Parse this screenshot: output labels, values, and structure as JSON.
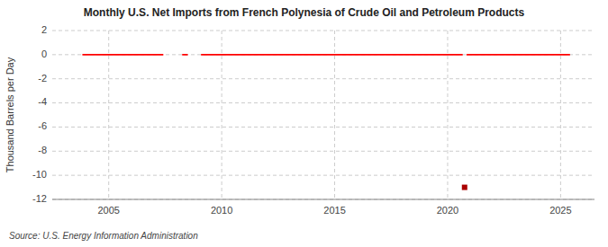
{
  "chart_data": {
    "type": "line",
    "title": "Monthly U.S. Net Imports from French Polynesia of Crude Oil and Petroleum Products",
    "ylabel": "Thousand Barrels per Day",
    "source": "Source: U.S. Energy Information Administration",
    "xlim": [
      2002.5,
      2026.5
    ],
    "ylim": [
      -12,
      2
    ],
    "xticks": [
      2005,
      2010,
      2015,
      2020,
      2025
    ],
    "yticks": [
      2,
      0,
      -2,
      -4,
      -6,
      -8,
      -10,
      -12
    ],
    "grid": true,
    "series": [
      {
        "type": "line",
        "color": "#FF0000",
        "x": [
          2003,
          2003.0833333333333,
          2003.1666666666667,
          2003.25,
          2003.3333333333333,
          2003.4166666666667,
          2003.5,
          2003.5833333333333,
          2003.6666666666667,
          2003.75,
          2003.8333333333333,
          2003.9166666666667,
          2004,
          2004.0833333333333,
          2004.1666666666667,
          2004.25,
          2004.3333333333333,
          2004.4166666666667,
          2004.5,
          2004.5833333333333,
          2004.6666666666667,
          2004.75,
          2004.8333333333333,
          2004.9166666666667,
          2005,
          2005.0833333333333,
          2005.1666666666667,
          2005.25,
          2005.3333333333333,
          2005.4166666666667,
          2005.5,
          2005.5833333333333,
          2005.6666666666667,
          2005.75,
          2005.8333333333333,
          2005.9166666666667,
          2006,
          2006.0833333333333,
          2006.1666666666667,
          2006.25,
          2006.3333333333333,
          2006.4166666666667,
          2006.5,
          2006.5833333333333,
          2006.6666666666667,
          2006.75,
          2006.8333333333333,
          2006.9166666666667,
          2007,
          2007.0833333333333,
          2007.1666666666667,
          2007.25,
          2007.3333333333333,
          2007.4166666666667,
          2007.5,
          2007.5833333333333,
          2007.6666666666667,
          2007.75,
          2007.8333333333333,
          2007.9166666666667,
          2008,
          2008.0833333333333,
          2008.1666666666667,
          2008.25,
          2008.3333333333333,
          2008.4166666666667,
          2008.5,
          2008.5833333333333,
          2008.6666666666667,
          2008.75,
          2008.8333333333333,
          2008.9166666666667,
          2009,
          2009.0833333333333,
          2009.1666666666667,
          2009.25,
          2009.3333333333333,
          2009.4166666666667,
          2009.5,
          2009.5833333333333,
          2009.6666666666667,
          2009.75,
          2009.8333333333333,
          2009.9166666666667,
          2010,
          2010.0833333333333,
          2010.1666666666667,
          2010.25,
          2010.3333333333333,
          2010.4166666666667,
          2010.5,
          2010.5833333333333,
          2010.6666666666667,
          2010.75,
          2010.8333333333333,
          2010.9166666666667,
          2011,
          2011.0833333333333,
          2011.1666666666667,
          2011.25,
          2011.3333333333333,
          2011.4166666666667,
          2011.5,
          2011.5833333333333,
          2011.6666666666667,
          2011.75,
          2011.8333333333333,
          2011.9166666666667,
          2012,
          2012.0833333333333,
          2012.1666666666667,
          2012.25,
          2012.3333333333333,
          2012.4166666666667,
          2012.5,
          2012.5833333333333,
          2012.6666666666667,
          2012.75,
          2012.8333333333333,
          2012.9166666666667,
          2013,
          2013.0833333333333,
          2013.1666666666667,
          2013.25,
          2013.3333333333333,
          2013.4166666666667,
          2013.5,
          2013.5833333333333,
          2013.6666666666667,
          2013.75,
          2013.8333333333333,
          2013.9166666666667,
          2014,
          2014.0833333333333,
          2014.1666666666667,
          2014.25,
          2014.3333333333333,
          2014.4166666666667,
          2014.5,
          2014.5833333333333,
          2014.6666666666667,
          2014.75,
          2014.8333333333333,
          2014.9166666666667,
          2015,
          2015.0833333333333,
          2015.1666666666667,
          2015.25,
          2015.3333333333333,
          2015.4166666666667,
          2015.5,
          2015.5833333333333,
          2015.6666666666667,
          2015.75,
          2015.8333333333333,
          2015.9166666666667,
          2016,
          2016.0833333333333,
          2016.1666666666667,
          2016.25,
          2016.3333333333333,
          2016.4166666666667,
          2016.5,
          2016.5833333333333,
          2016.6666666666667,
          2016.75,
          2016.8333333333333,
          2016.9166666666667,
          2017,
          2017.0833333333333,
          2017.1666666666667,
          2017.25,
          2017.3333333333333,
          2017.4166666666667,
          2017.5,
          2017.5833333333333,
          2017.6666666666667,
          2017.75,
          2017.8333333333333,
          2017.9166666666667,
          2018,
          2018.0833333333333,
          2018.1666666666667,
          2018.25,
          2018.3333333333333,
          2018.4166666666667,
          2018.5,
          2018.5833333333333,
          2018.6666666666667,
          2018.75,
          2018.8333333333333,
          2018.9166666666667,
          2019,
          2019.0833333333333,
          2019.1666666666667,
          2019.25,
          2019.3333333333333,
          2019.4166666666667,
          2019.5,
          2019.5833333333333,
          2019.6666666666667,
          2019.75,
          2019.8333333333333,
          2019.9166666666667,
          2020,
          2020.0833333333333,
          2020.1666666666667,
          2020.25,
          2020.3333333333333,
          2020.4166666666667,
          2020.5,
          2020.5833333333333,
          2020.6666666666667,
          2020.75,
          2020.8333333333333,
          2020.9166666666667,
          2021,
          2021.0833333333333,
          2021.1666666666667,
          2021.25,
          2021.3333333333333,
          2021.4166666666667,
          2021.5,
          2021.5833333333333,
          2021.6666666666667,
          2021.75,
          2021.8333333333333,
          2021.9166666666667,
          2022,
          2022.0833333333333,
          2022.1666666666667,
          2022.25,
          2022.3333333333333,
          2022.4166666666667,
          2022.5,
          2022.5833333333333,
          2022.6666666666667,
          2022.75,
          2022.8333333333333,
          2022.9166666666667,
          2023,
          2023.0833333333333,
          2023.1666666666667,
          2023.25,
          2023.3333333333333,
          2023.4166666666667,
          2023.5,
          2023.5833333333333,
          2023.6666666666667,
          2023.75,
          2023.8333333333333,
          2023.9166666666667,
          2024,
          2024.0833333333333,
          2024.1666666666667,
          2024.25,
          2024.3333333333333,
          2024.4166666666667,
          2024.5,
          2024.5833333333333,
          2024.6666666666667,
          2024.75,
          2024.8333333333333,
          2024.9166666666667,
          2025,
          2025.0833333333333,
          2025.1666666666667,
          2025.25,
          2025.3333333333333,
          2025.4166666666667
        ],
        "values": [
          null,
          null,
          null,
          null,
          null,
          null,
          null,
          null,
          null,
          null,
          0,
          0,
          0,
          0,
          0,
          0,
          0,
          0,
          0,
          0,
          0,
          0,
          0,
          0,
          0,
          0,
          0,
          0,
          0,
          0,
          0,
          0,
          0,
          0,
          0,
          0,
          0,
          0,
          0,
          0,
          0,
          0,
          0,
          0,
          0,
          0,
          0,
          0,
          0,
          0,
          0,
          0,
          0,
          0,
          null,
          null,
          null,
          null,
          null,
          null,
          null,
          null,
          null,
          0,
          0,
          0,
          0,
          null,
          null,
          null,
          null,
          null,
          null,
          0,
          0,
          0,
          0,
          0,
          0,
          0,
          0,
          0,
          0,
          0,
          0,
          0,
          0,
          0,
          0,
          0,
          0,
          0,
          0,
          0,
          0,
          0,
          0,
          0,
          0,
          0,
          0,
          0,
          0,
          0,
          0,
          0,
          0,
          0,
          0,
          0,
          0,
          0,
          0,
          0,
          0,
          0,
          0,
          0,
          0,
          0,
          0,
          0,
          0,
          0,
          0,
          0,
          0,
          0,
          0,
          0,
          0,
          0,
          0,
          0,
          0,
          0,
          0,
          0,
          0,
          0,
          0,
          0,
          0,
          0,
          0,
          0,
          0,
          0,
          0,
          0,
          0,
          0,
          0,
          0,
          0,
          0,
          0,
          0,
          0,
          0,
          0,
          0,
          0,
          0,
          0,
          0,
          0,
          0,
          0,
          0,
          0,
          0,
          0,
          0,
          0,
          0,
          0,
          0,
          0,
          0,
          0,
          0,
          0,
          0,
          0,
          0,
          0,
          0,
          0,
          0,
          0,
          0,
          0,
          0,
          0,
          0,
          0,
          0,
          0,
          0,
          0,
          0,
          0,
          0,
          0,
          0,
          0,
          0,
          0,
          0,
          0,
          0,
          0,
          null,
          0,
          0,
          0,
          0,
          0,
          0,
          0,
          0,
          0,
          0,
          0,
          0,
          0,
          0,
          0,
          0,
          0,
          0,
          0,
          0,
          0,
          0,
          0,
          0,
          0,
          0,
          0,
          0,
          0,
          0,
          0,
          0,
          0,
          0,
          0,
          0,
          0,
          0,
          0,
          0,
          0,
          0,
          0,
          0,
          0,
          0,
          0,
          0,
          0,
          0,
          0,
          0,
          0,
          0,
          0,
          0
        ]
      },
      {
        "type": "scatter",
        "color": "#AA0000",
        "marker": "square",
        "x": [
          2020.75
        ],
        "values": [
          -11.0
        ]
      }
    ]
  }
}
